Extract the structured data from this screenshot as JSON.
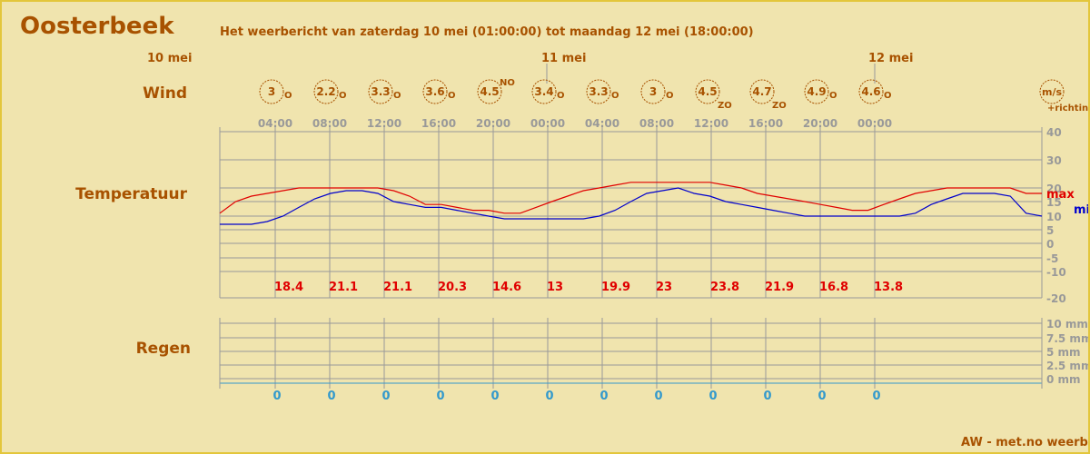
{
  "header": {
    "location": "Oosterbeek",
    "subtitle": "Het weerbericht van zaterdag 10 mei (01:00:00) tot maandag 12 mei (18:00:00)"
  },
  "days": [
    "10 mei",
    "11 mei",
    "12 mei"
  ],
  "labels": {
    "wind": "Wind",
    "temperature": "Temperatuur",
    "rain": "Regen",
    "wind_unit": "m/s",
    "wind_unit_note": "+richting",
    "max": "max",
    "min": "min"
  },
  "footer": "AW - met.no weerbericht",
  "colors": {
    "background": "#f0e4ae",
    "accent": "#a85200",
    "grid": "#999999",
    "max_line": "#e00000",
    "min_line": "#0000cc",
    "rain_value": "#3399cc"
  },
  "chart_data": {
    "type": "line",
    "times": [
      "04:00",
      "08:00",
      "12:00",
      "16:00",
      "20:00",
      "00:00",
      "04:00",
      "08:00",
      "12:00",
      "16:00",
      "20:00",
      "00:00"
    ],
    "wind": [
      {
        "speed": "3",
        "dir": "O"
      },
      {
        "speed": "2.2",
        "dir": "O"
      },
      {
        "speed": "3.3",
        "dir": "O"
      },
      {
        "speed": "3.6",
        "dir": "O"
      },
      {
        "speed": "4.5",
        "dir": "NO"
      },
      {
        "speed": "3.4",
        "dir": "O"
      },
      {
        "speed": "3.3",
        "dir": "O"
      },
      {
        "speed": "3",
        "dir": "O"
      },
      {
        "speed": "4.5",
        "dir": "ZO"
      },
      {
        "speed": "4.7",
        "dir": "ZO"
      },
      {
        "speed": "4.9",
        "dir": "O"
      },
      {
        "speed": "4.6",
        "dir": "O"
      }
    ],
    "temperature_axis": {
      "ticks": [
        40,
        30,
        20,
        15,
        10,
        5,
        0,
        -5,
        -10,
        -20
      ]
    },
    "max_labels": [
      "18.4",
      "21.1",
      "21.1",
      "20.3",
      "14.6",
      "13",
      "19.9",
      "23",
      "23.8",
      "21.9",
      "16.8",
      "13.8"
    ],
    "series": [
      {
        "name": "max",
        "values": [
          11,
          15,
          17,
          18,
          19,
          20,
          20,
          20,
          20,
          20,
          20,
          19,
          17,
          14,
          14,
          13,
          12,
          12,
          11,
          11,
          13,
          15,
          17,
          19,
          20,
          21,
          22,
          22,
          22,
          22,
          22,
          22,
          21,
          20,
          18,
          17,
          16,
          15,
          14,
          13,
          12,
          12,
          14,
          16,
          18,
          19,
          20,
          20,
          20,
          20,
          20,
          18,
          18
        ]
      },
      {
        "name": "min",
        "values": [
          7,
          7,
          7,
          8,
          10,
          13,
          16,
          18,
          19,
          19,
          18,
          15,
          14,
          13,
          13,
          12,
          11,
          10,
          9,
          9,
          9,
          9,
          9,
          9,
          10,
          12,
          15,
          18,
          19,
          20,
          18,
          17,
          15,
          14,
          13,
          12,
          11,
          10,
          10,
          10,
          10,
          10,
          10,
          10,
          11,
          14,
          16,
          18,
          18,
          18,
          17,
          11,
          10
        ]
      }
    ],
    "rain_axis": {
      "ticks": [
        "10 mm",
        "7.5 mm",
        "5 mm",
        "2.5 mm",
        "0 mm"
      ]
    },
    "rain_values": [
      "0",
      "0",
      "0",
      "0",
      "0",
      "0",
      "0",
      "0",
      "0",
      "0",
      "0",
      "0"
    ]
  }
}
